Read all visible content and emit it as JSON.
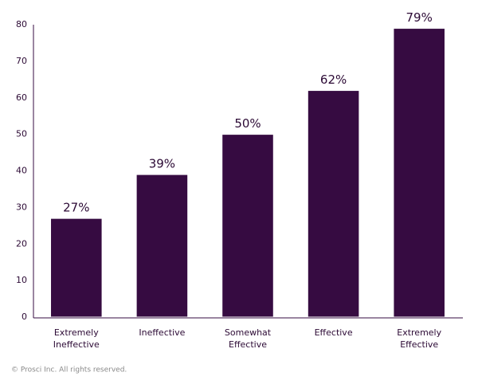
{
  "chart_data": {
    "type": "bar",
    "categories": [
      "Extremely Ineffective",
      "Ineffective",
      "Somewhat Effective",
      "Effective",
      "Extremely Effective"
    ],
    "values": [
      27,
      39,
      50,
      62,
      79
    ],
    "value_labels": [
      "27%",
      "39%",
      "50%",
      "62%",
      "79%"
    ],
    "color": "#360b41",
    "ylim": [
      0,
      80
    ],
    "yticks": [
      0,
      10,
      20,
      30,
      40,
      50,
      60,
      70,
      80
    ],
    "grid": false,
    "footnote": "© Prosci Inc. All rights reserved."
  }
}
